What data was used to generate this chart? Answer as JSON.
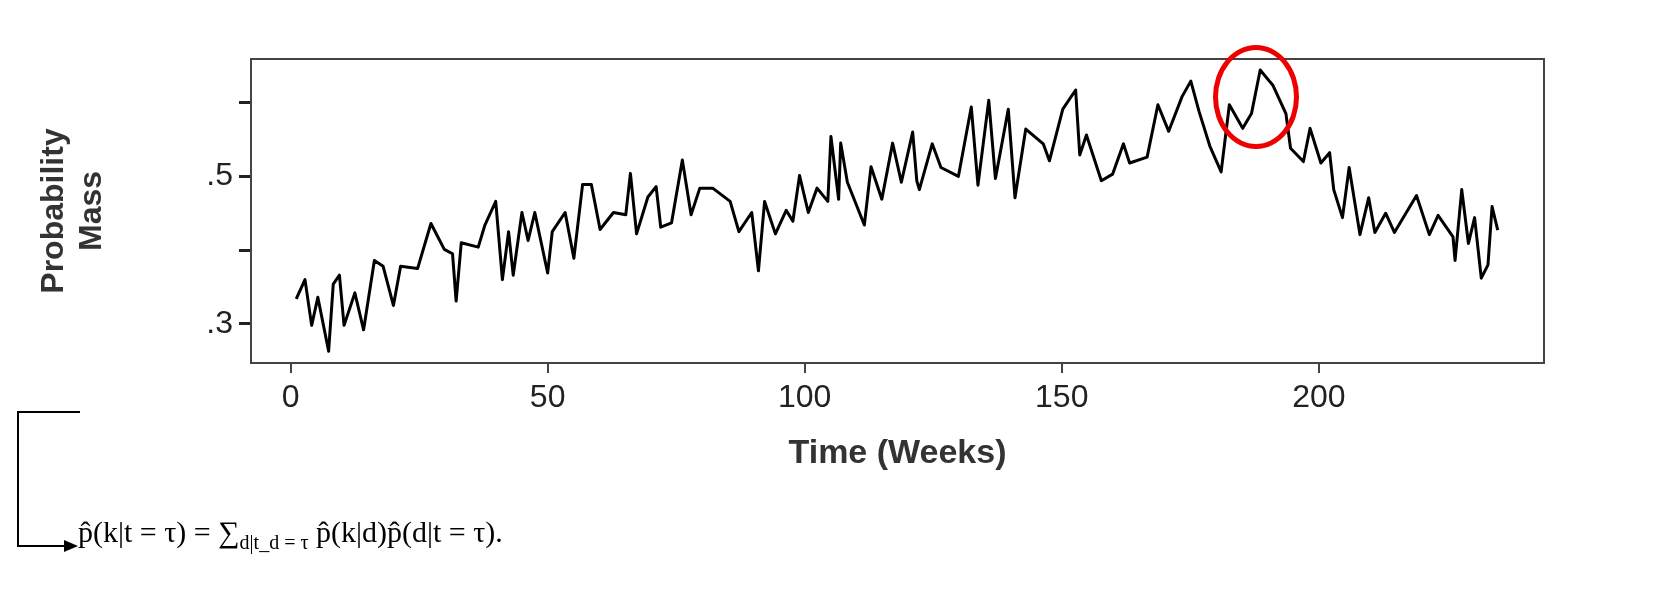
{
  "chart_data": {
    "type": "line",
    "xlabel": "Time (Weeks)",
    "ylabel": "Probability Mass",
    "x": [
      1.1,
      2.8,
      4.1,
      5.3,
      7.4,
      8.3,
      9.5,
      10.4,
      12.5,
      14.2,
      16.3,
      18,
      20,
      21.4,
      24.7,
      27.3,
      29.9,
      31.5,
      32.2,
      33.2,
      36.5,
      37.8,
      39.9,
      41.2,
      42.4,
      43.3,
      45,
      46.2,
      47.5,
      50,
      50.9,
      53.4,
      55.1,
      56.8,
      58.5,
      60.2,
      62.8,
      65.2,
      66.1,
      67.3,
      69.5,
      71.1,
      72,
      74.1,
      76.2,
      77.9,
      79.6,
      82.1,
      85.5,
      87.2,
      89.7,
      91,
      92.2,
      94.3,
      96.4,
      97.7,
      99,
      100.7,
      102.4,
      104.5,
      105.1,
      106.6,
      107,
      108.3,
      111.6,
      112.9,
      115,
      117.1,
      118.8,
      121,
      121.8,
      122.3,
      124.8,
      126.5,
      129.9,
      132.4,
      133.7,
      135.8,
      137.1,
      139.6,
      140.9,
      143,
      146.4,
      147.6,
      150.2,
      152.7,
      153.5,
      154.8,
      157.7,
      159.9,
      162,
      163.2,
      166.6,
      168.7,
      170.8,
      173.4,
      175.1,
      176.7,
      178.8,
      181,
      182.6,
      185.2,
      186.9,
      188.6,
      191.1,
      193.6,
      194.5,
      197,
      198.3,
      200.4,
      202.1,
      202.9,
      204.6,
      205.9,
      208,
      209.7,
      210.9,
      213,
      214.7,
      219,
      221.5,
      223.2,
      226.1,
      226.5,
      227.8,
      229.1,
      230.3,
      231.6,
      232.9,
      233.7,
      234.8
    ],
    "series": [
      {
        "color": "#000000",
        "values": [
          0.334,
          0.36,
          0.298,
          0.336,
          0.263,
          0.354,
          0.366,
          0.298,
          0.342,
          0.292,
          0.386,
          0.378,
          0.325,
          0.378,
          0.375,
          0.436,
          0.401,
          0.395,
          0.331,
          0.41,
          0.404,
          0.434,
          0.466,
          0.36,
          0.425,
          0.366,
          0.451,
          0.413,
          0.451,
          0.369,
          0.425,
          0.451,
          0.389,
          0.489,
          0.489,
          0.428,
          0.451,
          0.448,
          0.504,
          0.422,
          0.472,
          0.486,
          0.431,
          0.437,
          0.522,
          0.448,
          0.484,
          0.484,
          0.466,
          0.425,
          0.451,
          0.372,
          0.466,
          0.422,
          0.454,
          0.439,
          0.501,
          0.451,
          0.484,
          0.466,
          0.554,
          0.469,
          0.545,
          0.492,
          0.434,
          0.513,
          0.469,
          0.545,
          0.492,
          0.56,
          0.494,
          0.482,
          0.544,
          0.512,
          0.5,
          0.594,
          0.488,
          0.603,
          0.497,
          0.591,
          0.471,
          0.564,
          0.544,
          0.521,
          0.591,
          0.617,
          0.529,
          0.556,
          0.494,
          0.503,
          0.544,
          0.518,
          0.526,
          0.597,
          0.561,
          0.608,
          0.629,
          0.588,
          0.541,
          0.506,
          0.597,
          0.565,
          0.585,
          0.644,
          0.623,
          0.585,
          0.538,
          0.52,
          0.565,
          0.518,
          0.532,
          0.482,
          0.444,
          0.512,
          0.421,
          0.471,
          0.424,
          0.45,
          0.424,
          0.474,
          0.421,
          0.447,
          0.418,
          0.386,
          0.482,
          0.409,
          0.444,
          0.362,
          0.38,
          0.459,
          0.427
        ]
      }
    ],
    "xlim": [
      -7.7,
      243.8
    ],
    "xticks": [
      0,
      50,
      100,
      150,
      200
    ],
    "ylim": [
      0.247,
      0.659
    ],
    "yticks": [
      {
        "value": 0.3,
        "label": ".3"
      },
      {
        "value": 0.4,
        "label": null
      },
      {
        "value": 0.5,
        "label": ".5"
      },
      {
        "value": 0.6,
        "label": null
      }
    ],
    "marker": "none",
    "line_style": "solid",
    "annotations": [
      "p̂(k|t = τ) = ∑$_{d|t_d = τ}$ p̂(k|d)p̂(d|t = τ)."
    ]
  }
}
